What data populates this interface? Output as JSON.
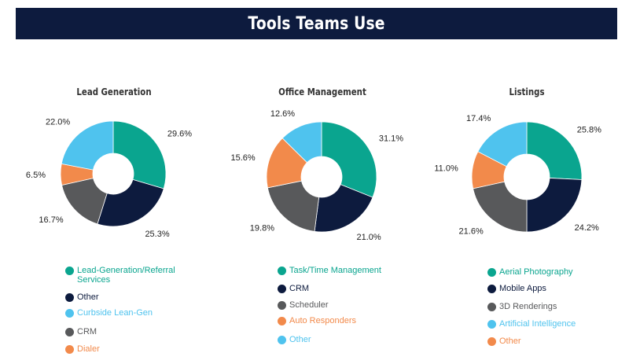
{
  "banner": {
    "title": "Tools Teams Use"
  },
  "colors": {
    "teal": "#0aa58f",
    "navy": "#0d1b3e",
    "lightblue": "#4fc3ee",
    "gray": "#58595b",
    "orange": "#f28a4b",
    "banner": "#0d1b3e"
  },
  "chart_data": [
    {
      "type": "pie",
      "title": "Lead Generation",
      "slices": [
        {
          "label": "Lead-Generation/Referral Services",
          "value": 29.6,
          "display": "29.6%",
          "color": "#0aa58f"
        },
        {
          "label": "Other",
          "value": 25.3,
          "display": "25.3%",
          "color": "#0d1b3e"
        },
        {
          "label": "CRM",
          "value": 16.7,
          "display": "16.7%",
          "color": "#58595b"
        },
        {
          "label": "Dialer",
          "value": 6.5,
          "display": "6.5%",
          "color": "#f28a4b"
        },
        {
          "label": "Curbside Lean-Gen",
          "value": 22.0,
          "display": "22.0%",
          "color": "#4fc3ee"
        }
      ],
      "legend": [
        {
          "label": "Lead-Generation/Referral Services",
          "color": "#0aa58f"
        },
        {
          "label": "Other",
          "color": "#0d1b3e"
        },
        {
          "label": "Curbside Lean-Gen",
          "color": "#4fc3ee"
        },
        {
          "label": "CRM",
          "color": "#58595b"
        },
        {
          "label": "Dialer",
          "color": "#f28a4b"
        }
      ]
    },
    {
      "type": "pie",
      "title": "Office Management",
      "slices": [
        {
          "label": "Task/Time Management",
          "value": 31.1,
          "display": "31.1%",
          "color": "#0aa58f"
        },
        {
          "label": "CRM",
          "value": 21.0,
          "display": "21.0%",
          "color": "#0d1b3e"
        },
        {
          "label": "Scheduler",
          "value": 19.8,
          "display": "19.8%",
          "color": "#58595b"
        },
        {
          "label": "Auto Responders",
          "value": 15.6,
          "display": "15.6%",
          "color": "#f28a4b"
        },
        {
          "label": "Other",
          "value": 12.6,
          "display": "12.6%",
          "color": "#4fc3ee"
        }
      ],
      "legend": [
        {
          "label": "Task/Time Management",
          "color": "#0aa58f"
        },
        {
          "label": "CRM",
          "color": "#0d1b3e"
        },
        {
          "label": "Scheduler",
          "color": "#58595b"
        },
        {
          "label": "Auto Responders",
          "color": "#f28a4b"
        },
        {
          "label": "Other",
          "color": "#4fc3ee"
        }
      ]
    },
    {
      "type": "pie",
      "title": "Listings",
      "slices": [
        {
          "label": "Aerial Photography",
          "value": 25.8,
          "display": "25.8%",
          "color": "#0aa58f"
        },
        {
          "label": "Mobile Apps",
          "value": 24.2,
          "display": "24.2%",
          "color": "#0d1b3e"
        },
        {
          "label": "3D Renderings",
          "value": 21.6,
          "display": "21.6%",
          "color": "#58595b"
        },
        {
          "label": "Other",
          "value": 11.0,
          "display": "11.0%",
          "color": "#f28a4b"
        },
        {
          "label": "Artificial Intelligence",
          "value": 17.4,
          "display": "17.4%",
          "color": "#4fc3ee"
        }
      ],
      "legend": [
        {
          "label": "Aerial Photography",
          "color": "#0aa58f"
        },
        {
          "label": "Mobile Apps",
          "color": "#0d1b3e"
        },
        {
          "label": "3D Renderings",
          "color": "#58595b"
        },
        {
          "label": "Artificial Intelligence",
          "color": "#4fc3ee"
        },
        {
          "label": "Other",
          "color": "#f28a4b"
        }
      ]
    }
  ]
}
